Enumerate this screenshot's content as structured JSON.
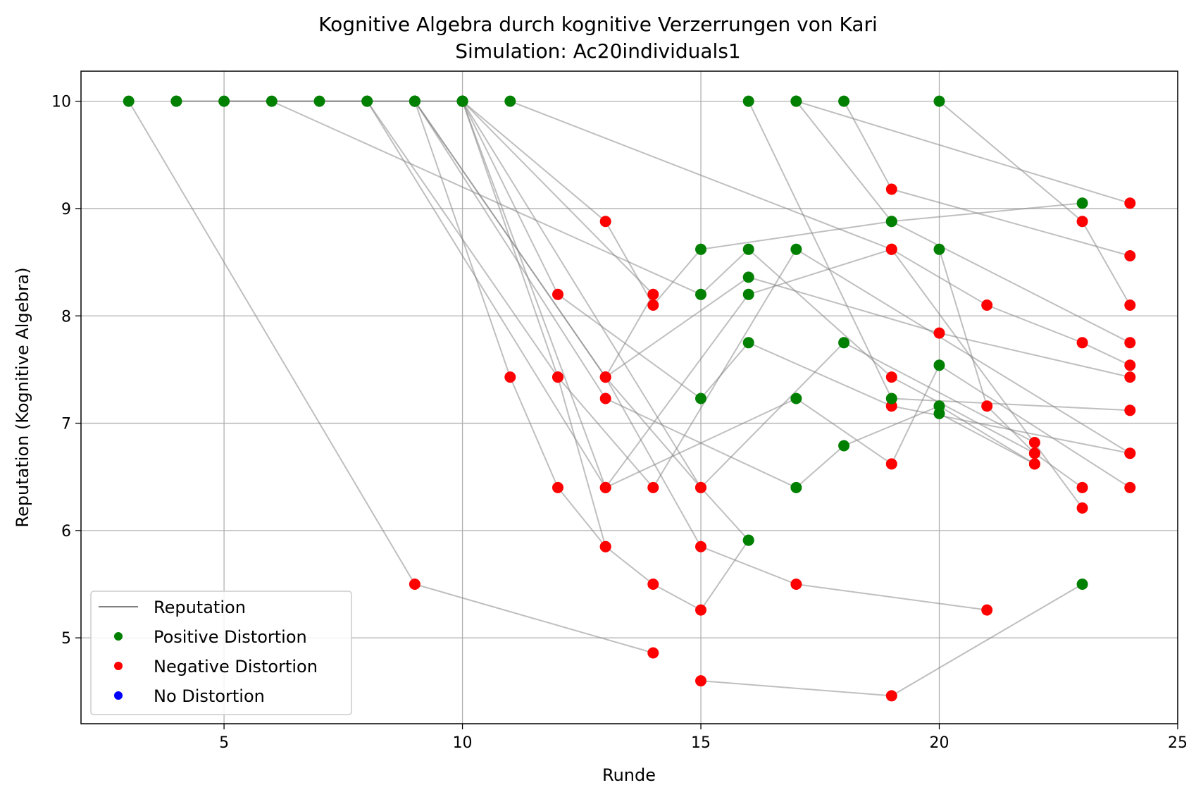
{
  "chart_data": {
    "type": "scatter",
    "title": "Kognitive Algebra durch kognitive Verzerrungen von Kari",
    "subtitle": "Simulation: Ac20individuals1",
    "xlabel": "Runde",
    "ylabel": "Reputation (Kognitive Algebra)",
    "xlim": [
      2.0,
      25.0
    ],
    "ylim": [
      4.2,
      10.28
    ],
    "xticks": [
      5,
      10,
      15,
      20,
      25
    ],
    "yticks": [
      5,
      6,
      7,
      8,
      9,
      10
    ],
    "grid": true,
    "legend_position": "lower-left",
    "legend": [
      {
        "label": "Reputation",
        "kind": "line",
        "color": "#808080"
      },
      {
        "label": "Positive Distortion",
        "kind": "point",
        "color": "#008000"
      },
      {
        "label": "Negative Distortion",
        "kind": "point",
        "color": "#ff0000"
      },
      {
        "label": "No Distortion",
        "kind": "point",
        "color": "#0000ff"
      }
    ],
    "colors": {
      "line": "#808080",
      "positive": "#008000",
      "negative": "#ff0000",
      "none": "#0000ff"
    },
    "series": [
      {
        "points": [
          [
            3,
            10,
            "p"
          ],
          [
            9,
            5.5,
            "n"
          ],
          [
            14,
            4.86,
            "n"
          ]
        ]
      },
      {
        "points": [
          [
            4,
            10,
            "p"
          ],
          [
            9,
            10,
            "p"
          ],
          [
            13,
            7.43,
            "n"
          ],
          [
            15,
            6.4,
            "n"
          ],
          [
            16,
            5.91,
            "p"
          ]
        ]
      },
      {
        "points": [
          [
            4,
            10,
            "p"
          ],
          [
            10,
            10,
            "p"
          ],
          [
            13,
            8.88,
            "n"
          ],
          [
            14,
            8.1,
            "n"
          ],
          [
            15,
            8.62,
            "p"
          ],
          [
            19,
            8.88,
            "p"
          ],
          [
            23,
            9.05,
            "p"
          ]
        ]
      },
      {
        "points": [
          [
            5,
            10,
            "p"
          ],
          [
            8,
            10,
            "p"
          ],
          [
            13,
            6.4,
            "n"
          ],
          [
            16,
            8.2,
            "p"
          ],
          [
            19,
            8.62,
            "n"
          ],
          [
            23,
            6.21,
            "n"
          ]
        ]
      },
      {
        "points": [
          [
            6,
            10,
            "p"
          ],
          [
            15,
            8.2,
            "p"
          ],
          [
            16,
            8.62,
            "p"
          ],
          [
            19,
            7.43,
            "n"
          ],
          [
            22,
            6.72,
            "n"
          ]
        ]
      },
      {
        "points": [
          [
            7,
            10,
            "p"
          ],
          [
            10,
            10,
            "p"
          ],
          [
            12,
            8.2,
            "n"
          ],
          [
            15,
            7.23,
            "p"
          ],
          [
            16,
            7.75,
            "p"
          ],
          [
            19,
            7.16,
            "n"
          ],
          [
            24,
            6.72,
            "n"
          ]
        ]
      },
      {
        "points": [
          [
            8,
            10,
            "p"
          ],
          [
            12,
            7.43,
            "n"
          ],
          [
            13,
            5.85,
            "n"
          ],
          [
            14,
            5.5,
            "n"
          ],
          [
            15,
            5.26,
            "n"
          ],
          [
            16,
            5.91,
            "p"
          ]
        ]
      },
      {
        "points": [
          [
            9,
            10,
            "p"
          ],
          [
            11,
            7.43,
            "n"
          ],
          [
            12,
            6.4,
            "n"
          ],
          [
            13,
            5.85,
            "n"
          ]
        ]
      },
      {
        "points": [
          [
            9,
            10,
            "p"
          ],
          [
            13,
            7.43,
            "n"
          ],
          [
            16,
            8.36,
            "p"
          ],
          [
            20,
            7.84,
            "n"
          ],
          [
            24,
            7.43,
            "n"
          ]
        ]
      },
      {
        "points": [
          [
            9,
            10,
            "p"
          ],
          [
            13,
            7.23,
            "n"
          ],
          [
            17,
            6.4,
            "p"
          ],
          [
            18,
            6.79,
            "p"
          ],
          [
            20,
            7.16,
            "p"
          ],
          [
            22,
            6.62,
            "n"
          ]
        ]
      },
      {
        "points": [
          [
            10,
            10,
            "p"
          ],
          [
            14,
            8.2,
            "n"
          ],
          [
            13,
            7.43,
            "n"
          ],
          [
            15,
            5.85,
            "n"
          ],
          [
            17,
            5.5,
            "n"
          ],
          [
            21,
            5.26,
            "n"
          ]
        ]
      },
      {
        "points": [
          [
            10,
            10,
            "p"
          ],
          [
            13,
            6.4,
            "n"
          ],
          [
            17,
            7.23,
            "p"
          ],
          [
            19,
            6.62,
            "n"
          ],
          [
            20,
            7.54,
            "p"
          ],
          [
            24,
            6.4,
            "n"
          ]
        ]
      },
      {
        "points": [
          [
            10,
            10,
            "p"
          ],
          [
            15,
            6.4,
            "n"
          ],
          [
            18,
            7.75,
            "p"
          ],
          [
            22,
            6.82,
            "n"
          ]
        ]
      },
      {
        "points": [
          [
            10,
            10,
            "p"
          ],
          [
            12,
            7.43,
            "n"
          ],
          [
            14,
            6.4,
            "n"
          ],
          [
            17,
            8.62,
            "p"
          ],
          [
            24,
            6.72,
            "n"
          ]
        ]
      },
      {
        "points": [
          [
            11,
            10,
            "p"
          ],
          [
            19,
            8.62,
            "n"
          ],
          [
            21,
            8.1,
            "n"
          ],
          [
            23,
            7.75,
            "n"
          ],
          [
            24,
            7.54,
            "n"
          ]
        ]
      },
      {
        "points": [
          [
            15,
            4.6,
            "n"
          ],
          [
            19,
            4.46,
            "n"
          ],
          [
            23,
            5.5,
            "p"
          ]
        ]
      },
      {
        "points": [
          [
            16,
            10,
            "p"
          ],
          [
            19,
            7.23,
            "p"
          ],
          [
            24,
            7.12,
            "n"
          ]
        ]
      },
      {
        "points": [
          [
            17,
            10,
            "p"
          ],
          [
            19,
            8.88,
            "p"
          ],
          [
            24,
            7.75,
            "n"
          ]
        ]
      },
      {
        "points": [
          [
            17,
            10,
            "p"
          ],
          [
            24,
            9.05,
            "n"
          ]
        ]
      },
      {
        "points": [
          [
            18,
            10,
            "p"
          ],
          [
            19,
            9.18,
            "n"
          ],
          [
            24,
            8.56,
            "n"
          ]
        ]
      },
      {
        "points": [
          [
            20,
            10,
            "p"
          ],
          [
            23,
            8.88,
            "n"
          ],
          [
            24,
            8.1,
            "n"
          ]
        ]
      },
      {
        "points": [
          [
            20,
            8.62,
            "p"
          ],
          [
            21,
            7.16,
            "n"
          ],
          [
            22,
            6.72,
            "n"
          ],
          [
            23,
            6.4,
            "n"
          ]
        ]
      },
      {
        "points": [
          [
            20,
            7.09,
            "p"
          ],
          [
            22,
            6.62,
            "n"
          ]
        ]
      }
    ]
  }
}
